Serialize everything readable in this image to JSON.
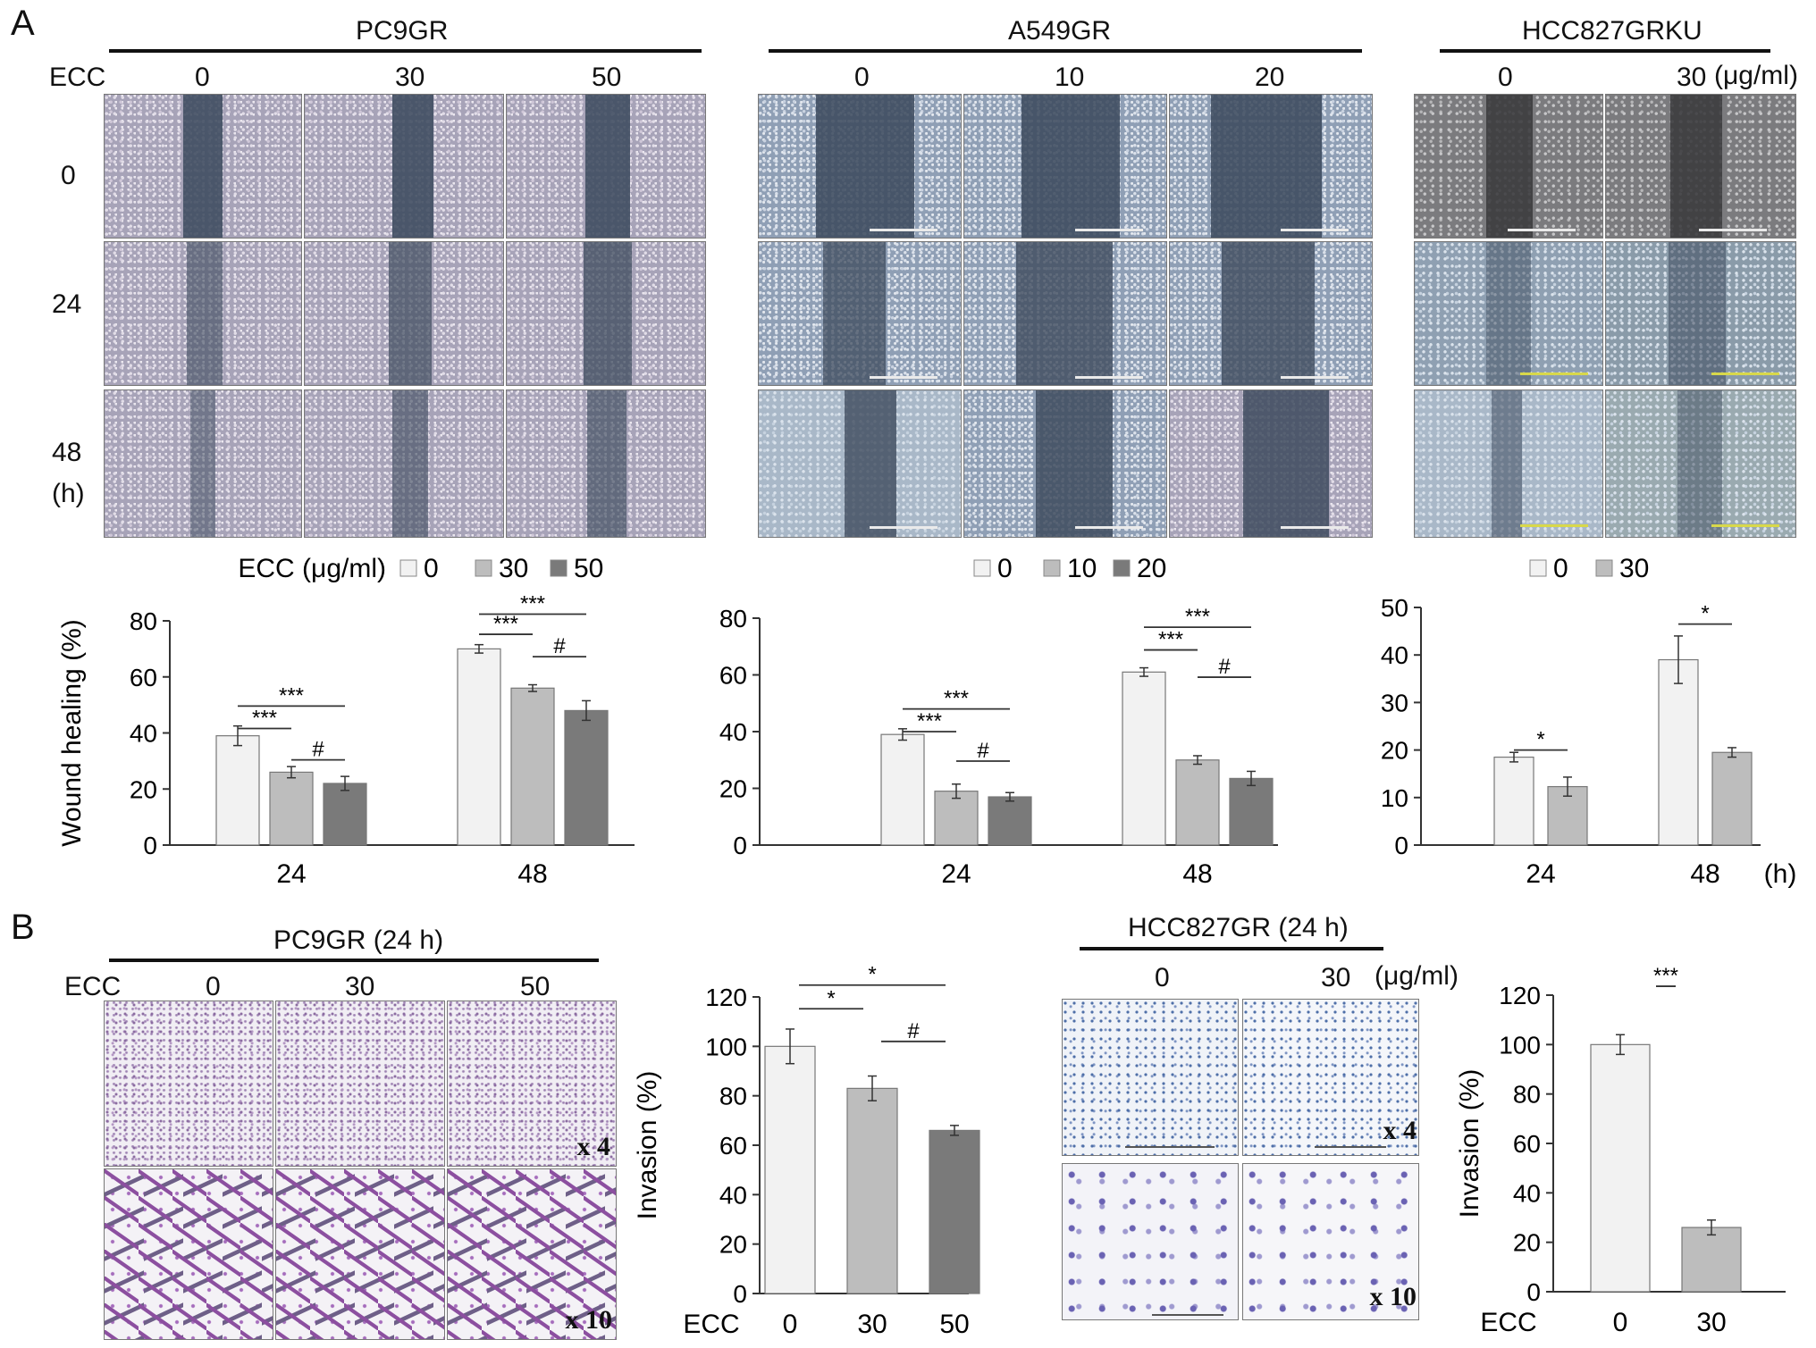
{
  "panel_a": {
    "letter": "A",
    "ecc_label": "ECC",
    "time_labels": [
      "0",
      "24",
      "48",
      "(h)"
    ],
    "unit_label": "(μg/ml)",
    "groups": [
      {
        "name": "PC9GR",
        "doses": [
          "0",
          "30",
          "50"
        ]
      },
      {
        "name": "A549GR",
        "doses": [
          "0",
          "10",
          "20"
        ]
      },
      {
        "name": "HCC827GRKU",
        "doses": [
          "0",
          "30"
        ]
      }
    ]
  },
  "panel_b": {
    "letter": "B",
    "groups": [
      {
        "name": "PC9GR (24 h)",
        "ecc_label": "ECC",
        "doses": [
          "0",
          "30",
          "50"
        ],
        "magnifications": [
          "x 4",
          "x 10"
        ]
      },
      {
        "name": "HCC827GR (24 h)",
        "doses": [
          "0",
          "30"
        ],
        "unit_label": "(μg/ml)",
        "magnifications": [
          "x 4",
          "x 10"
        ]
      }
    ]
  },
  "chart_data": [
    {
      "type": "bar",
      "legend_title": "ECC (μg/ml)",
      "legend_placement": "top",
      "ylabel": "Wound healing (%)",
      "ylim": [
        0,
        80
      ],
      "yticks": [
        "0",
        "20",
        "40",
        "60",
        "80"
      ],
      "categories": [
        "24",
        "48"
      ],
      "series": [
        {
          "name": "0",
          "values": [
            39,
            70
          ],
          "errors": [
            3.5,
            1.5
          ],
          "color": "#f2f2f2"
        },
        {
          "name": "30",
          "values": [
            26,
            56
          ],
          "errors": [
            2,
            1.2
          ],
          "color": "#bdbdbd"
        },
        {
          "name": "50",
          "values": [
            22,
            48
          ],
          "errors": [
            2.5,
            3.5
          ],
          "color": "#7a7a7a"
        }
      ],
      "annotations": [
        {
          "label": "***",
          "category": 0,
          "from": 0,
          "to": 1,
          "level": 0.52
        },
        {
          "label": "***",
          "category": 0,
          "from": 0,
          "to": 2,
          "level": 0.62
        },
        {
          "label": "#",
          "category": 0,
          "from": 1,
          "to": 2,
          "level": 0.38
        },
        {
          "label": "***",
          "category": 1,
          "from": 0,
          "to": 1,
          "level": 0.94
        },
        {
          "label": "***",
          "category": 1,
          "from": 0,
          "to": 2,
          "level": 1.03
        },
        {
          "label": "#",
          "category": 1,
          "from": 1,
          "to": 2,
          "level": 0.84
        }
      ]
    },
    {
      "type": "bar",
      "legend_placement": "top",
      "ylim": [
        0,
        80
      ],
      "yticks": [
        "0",
        "20",
        "40",
        "60",
        "80"
      ],
      "categories": [
        "24",
        "48"
      ],
      "series": [
        {
          "name": "0",
          "values": [
            39,
            61
          ],
          "errors": [
            2,
            1.5
          ],
          "color": "#f2f2f2"
        },
        {
          "name": "10",
          "values": [
            19,
            30
          ],
          "errors": [
            2.5,
            1.5
          ],
          "color": "#bdbdbd"
        },
        {
          "name": "20",
          "values": [
            17,
            23.5
          ],
          "errors": [
            1.5,
            2.5
          ],
          "color": "#7a7a7a"
        }
      ],
      "annotations": [
        {
          "label": "***",
          "category": 0,
          "from": 0,
          "to": 1,
          "level": 0.5
        },
        {
          "label": "***",
          "category": 0,
          "from": 0,
          "to": 2,
          "level": 0.6
        },
        {
          "label": "#",
          "category": 0,
          "from": 1,
          "to": 2,
          "level": 0.37
        },
        {
          "label": "***",
          "category": 1,
          "from": 0,
          "to": 1,
          "level": 0.86
        },
        {
          "label": "***",
          "category": 1,
          "from": 0,
          "to": 2,
          "level": 0.96
        },
        {
          "label": "#",
          "category": 1,
          "from": 1,
          "to": 2,
          "level": 0.74
        }
      ]
    },
    {
      "type": "bar",
      "legend_placement": "top",
      "ylim": [
        0,
        50
      ],
      "yticks": [
        "0",
        "10",
        "20",
        "30",
        "40",
        "50"
      ],
      "categories": [
        "24",
        "48"
      ],
      "xunit": "(h)",
      "series": [
        {
          "name": "0",
          "values": [
            18.5,
            39
          ],
          "errors": [
            1,
            5
          ],
          "color": "#f2f2f2"
        },
        {
          "name": "30",
          "values": [
            12.3,
            19.5
          ],
          "errors": [
            2,
            1
          ],
          "color": "#bdbdbd"
        }
      ],
      "annotations": [
        {
          "label": "*",
          "category": 0,
          "from": 0,
          "to": 1,
          "level": 0.4
        },
        {
          "label": "*",
          "category": 1,
          "from": 0,
          "to": 1,
          "level": 0.93
        }
      ]
    },
    {
      "type": "bar",
      "ylabel": "Invasion (%)",
      "xlabel": "ECC",
      "ylim": [
        0,
        120
      ],
      "yticks": [
        "0",
        "20",
        "40",
        "60",
        "80",
        "100",
        "120"
      ],
      "categories": [
        "0",
        "30",
        "50"
      ],
      "values": [
        100,
        83,
        66
      ],
      "errors": [
        7,
        5,
        2
      ],
      "colors": [
        "#f2f2f2",
        "#bdbdbd",
        "#7a7a7a"
      ],
      "annotations": [
        {
          "label": "*",
          "from": 0,
          "to": 1,
          "level": 0.96
        },
        {
          "label": "*",
          "from": 0,
          "to": 2,
          "level": 1.04
        },
        {
          "label": "#",
          "from": 1,
          "to": 2,
          "level": 0.85
        }
      ]
    },
    {
      "type": "bar",
      "ylabel": "Invasion (%)",
      "xlabel": "ECC",
      "ylim": [
        0,
        120
      ],
      "yticks": [
        "0",
        "20",
        "40",
        "60",
        "80",
        "100",
        "120"
      ],
      "categories": [
        "0",
        "30"
      ],
      "values": [
        100,
        26
      ],
      "errors": [
        4,
        3
      ],
      "colors": [
        "#f2f2f2",
        "#bdbdbd"
      ],
      "annotations": [
        {
          "label": "***",
          "from": 0,
          "to": 1,
          "level": 1.03
        }
      ]
    }
  ]
}
